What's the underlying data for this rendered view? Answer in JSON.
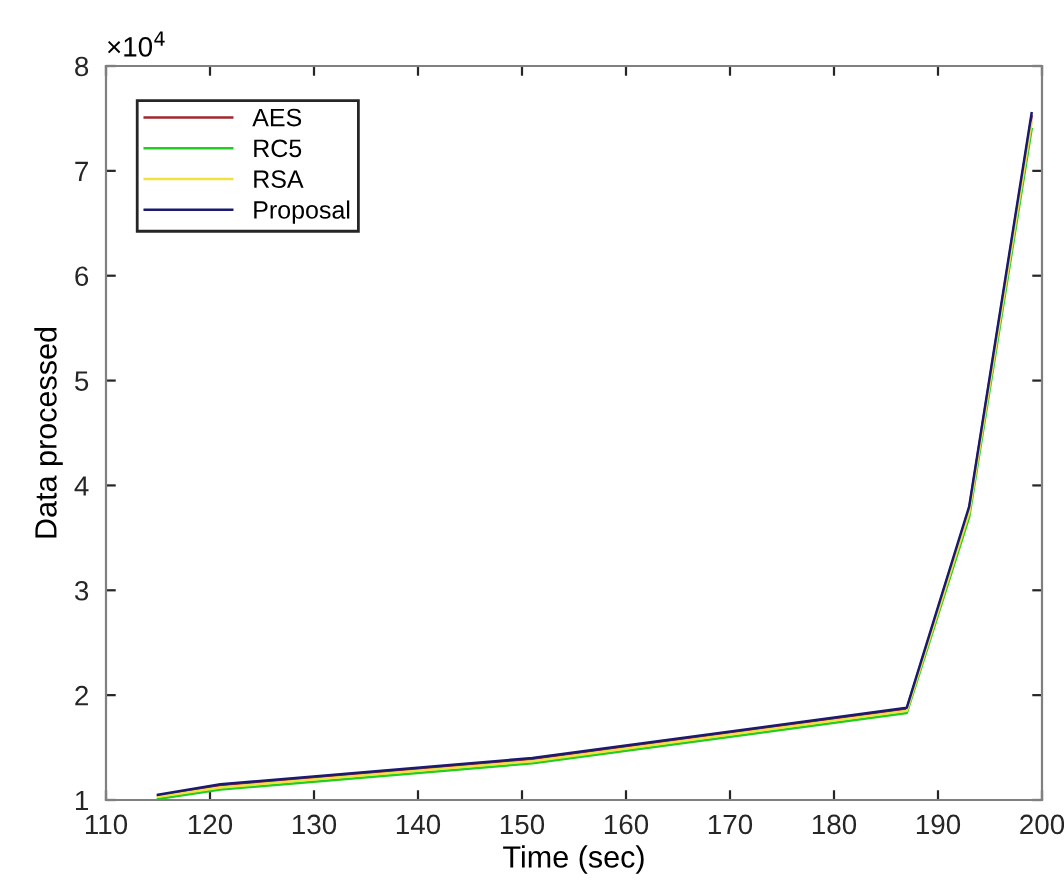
{
  "chart_data": {
    "type": "line",
    "xlabel": "Time (sec)",
    "ylabel": "Data processed",
    "annotations": [
      "×10$^{4}$"
    ],
    "x": [
      115,
      121,
      151,
      187,
      193,
      199
    ],
    "series": [
      {
        "name": "AES",
        "color": "#a0282e",
        "values": [
          1.04,
          1.14,
          1.39,
          1.87,
          3.78,
          7.52
        ]
      },
      {
        "name": "RC5",
        "color": "#22cc22",
        "values": [
          1.01,
          1.1,
          1.35,
          1.83,
          3.7,
          7.4
        ]
      },
      {
        "name": "RSA",
        "color": "#f0e040",
        "values": [
          1.03,
          1.12,
          1.37,
          1.85,
          3.74,
          7.46
        ]
      },
      {
        "name": "Proposal",
        "color": "#1a1a70",
        "values": [
          1.05,
          1.15,
          1.4,
          1.88,
          3.8,
          7.55
        ]
      }
    ],
    "xlim": [
      110,
      200
    ],
    "xticks": [
      110,
      120,
      130,
      140,
      150,
      160,
      170,
      180,
      190,
      200
    ],
    "ylim": [
      1,
      8
    ],
    "yticks": [
      1,
      2,
      3,
      4,
      5,
      6,
      7,
      8
    ],
    "grid": false,
    "legend": "top left",
    "marker": "none",
    "line_style": "solid"
  }
}
